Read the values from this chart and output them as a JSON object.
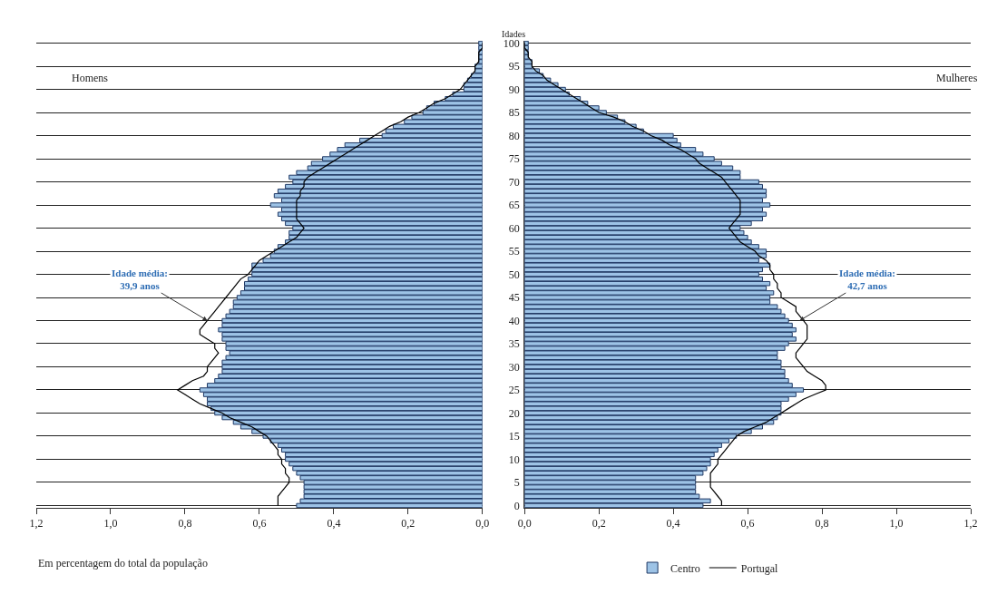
{
  "chart_data": [
    {
      "type": "bar",
      "orientation": "horizontal",
      "title": "Homens",
      "categories": [
        "100",
        null,
        null,
        null,
        null,
        "95",
        null,
        null,
        null,
        null,
        "90",
        null,
        null,
        null,
        null,
        "85",
        null,
        null,
        null,
        null,
        "80",
        null,
        null,
        null,
        null,
        "75",
        null,
        null,
        null,
        null,
        "70",
        null,
        null,
        null,
        null,
        "65",
        null,
        null,
        null,
        null,
        "60",
        null,
        null,
        null,
        null,
        "55",
        null,
        null,
        null,
        null,
        "50",
        null,
        null,
        null,
        null,
        "45",
        null,
        null,
        null,
        null,
        "40",
        null,
        null,
        null,
        null,
        "35",
        null,
        null,
        null,
        null,
        "30",
        null,
        null,
        null,
        null,
        "25",
        null,
        null,
        null,
        null,
        "20",
        null,
        null,
        null,
        null,
        "15",
        null,
        null,
        null,
        null,
        "10",
        null,
        null,
        null,
        null,
        "5",
        null,
        null,
        null,
        null,
        "0"
      ],
      "series": [
        {
          "color": "#9dc3e6",
          "values": [
            0.01,
            0.01,
            0.01,
            0.01,
            0.01,
            0.02,
            0.02,
            0.03,
            0.04,
            0.05,
            0.05,
            0.08,
            0.1,
            0.13,
            0.15,
            0.16,
            0.19,
            0.21,
            0.24,
            0.26,
            0.27,
            0.33,
            0.37,
            0.39,
            0.41,
            0.43,
            0.46,
            0.47,
            0.5,
            0.52,
            0.51,
            0.53,
            0.55,
            0.56,
            0.54,
            0.57,
            0.54,
            0.55,
            0.54,
            0.53,
            0.51,
            0.52,
            0.52,
            0.53,
            0.55,
            0.56,
            0.57,
            0.59,
            0.62,
            0.62,
            0.62,
            0.63,
            0.64,
            0.64,
            0.65,
            0.66,
            0.67,
            0.67,
            0.68,
            0.69,
            0.7,
            0.7,
            0.71,
            0.7,
            0.7,
            0.69,
            0.69,
            0.68,
            0.69,
            0.7,
            0.7,
            0.7,
            0.71,
            0.72,
            0.74,
            0.76,
            0.75,
            0.74,
            0.74,
            0.73,
            0.72,
            0.7,
            0.67,
            0.65,
            0.62,
            0.59,
            0.57,
            0.55,
            0.54,
            0.53,
            0.53,
            0.52,
            0.51,
            0.5,
            0.49,
            0.48,
            0.48,
            0.48,
            0.48,
            0.49,
            0.5
          ]
        },
        {
          "type": "line",
          "color": "#000000",
          "values": [
            0.0,
            0.0,
            0.01,
            0.01,
            0.01,
            0.02,
            0.02,
            0.03,
            0.04,
            0.05,
            0.06,
            0.08,
            0.1,
            0.13,
            0.15,
            0.17,
            0.2,
            0.22,
            0.25,
            0.27,
            0.29,
            0.31,
            0.33,
            0.35,
            0.37,
            0.39,
            0.41,
            0.43,
            0.45,
            0.47,
            0.48,
            0.48,
            0.49,
            0.49,
            0.5,
            0.5,
            0.5,
            0.5,
            0.5,
            0.49,
            0.48,
            0.49,
            0.5,
            0.52,
            0.54,
            0.56,
            0.58,
            0.6,
            0.61,
            0.62,
            0.63,
            0.65,
            0.66,
            0.67,
            0.68,
            0.69,
            0.7,
            0.71,
            0.72,
            0.73,
            0.74,
            0.75,
            0.76,
            0.76,
            0.74,
            0.72,
            0.72,
            0.71,
            0.72,
            0.73,
            0.74,
            0.74,
            0.75,
            0.78,
            0.8,
            0.82,
            0.8,
            0.78,
            0.76,
            0.73,
            0.7,
            0.68,
            0.65,
            0.62,
            0.6,
            0.58,
            0.57,
            0.56,
            0.55,
            0.55,
            0.54,
            0.54,
            0.53,
            0.53,
            0.52,
            0.52,
            0.53,
            0.54,
            0.55,
            0.55,
            0.55
          ]
        }
      ],
      "xlim": [
        1.2,
        0
      ],
      "xticks": [
        {
          "value": 1.2,
          "label": "1,2"
        },
        {
          "value": 1.0,
          "label": "1,0"
        },
        {
          "value": 0.8,
          "label": "0,8"
        },
        {
          "value": 0.6,
          "label": "0,6"
        },
        {
          "value": 0.4,
          "label": "0,4"
        },
        {
          "value": 0.2,
          "label": "0,2"
        },
        {
          "value": 0,
          "label": "0,0"
        }
      ],
      "grid": "y",
      "tick_labels": "x",
      "annotations": [
        {
          "text": "Idade média:\n39,9 anos",
          "x": 0.74,
          "y": "40"
        },
        "Em percentagem do total da população"
      ]
    },
    {
      "type": "bar",
      "orientation": "horizontal",
      "title": "Mulheres",
      "ylabel": "Idades",
      "categories": [
        "100",
        null,
        null,
        null,
        null,
        "95",
        null,
        null,
        null,
        null,
        "90",
        null,
        null,
        null,
        null,
        "85",
        null,
        null,
        null,
        null,
        "80",
        null,
        null,
        null,
        null,
        "75",
        null,
        null,
        null,
        null,
        "70",
        null,
        null,
        null,
        null,
        "65",
        null,
        null,
        null,
        null,
        "60",
        null,
        null,
        null,
        null,
        "55",
        null,
        null,
        null,
        null,
        "50",
        null,
        null,
        null,
        null,
        "45",
        null,
        null,
        null,
        null,
        "40",
        null,
        null,
        null,
        null,
        "35",
        null,
        null,
        null,
        null,
        "30",
        null,
        null,
        null,
        null,
        "25",
        null,
        null,
        null,
        null,
        "20",
        null,
        null,
        null,
        null,
        "15",
        null,
        null,
        null,
        null,
        "10",
        null,
        null,
        null,
        null,
        "5",
        null,
        null,
        null,
        null,
        "0"
      ],
      "series": [
        {
          "name": "Centro",
          "color": "#9dc3e6",
          "values": [
            0.01,
            0.01,
            0.01,
            0.01,
            0.02,
            0.02,
            0.04,
            0.05,
            0.07,
            0.09,
            0.11,
            0.12,
            0.15,
            0.17,
            0.2,
            0.22,
            0.25,
            0.27,
            0.3,
            0.32,
            0.4,
            0.41,
            0.42,
            0.46,
            0.48,
            0.51,
            0.53,
            0.56,
            0.58,
            0.58,
            0.63,
            0.64,
            0.65,
            0.65,
            0.64,
            0.66,
            0.64,
            0.65,
            0.64,
            0.61,
            0.58,
            0.59,
            0.6,
            0.61,
            0.63,
            0.65,
            0.65,
            0.63,
            0.66,
            0.64,
            0.63,
            0.64,
            0.66,
            0.65,
            0.67,
            0.66,
            0.66,
            0.68,
            0.69,
            0.7,
            0.71,
            0.72,
            0.73,
            0.72,
            0.73,
            0.71,
            0.7,
            0.68,
            0.68,
            0.69,
            0.69,
            0.7,
            0.7,
            0.71,
            0.72,
            0.75,
            0.73,
            0.71,
            0.69,
            0.69,
            0.69,
            0.68,
            0.67,
            0.64,
            0.61,
            0.57,
            0.55,
            0.53,
            0.52,
            0.51,
            0.5,
            0.5,
            0.49,
            0.48,
            0.46,
            0.46,
            0.46,
            0.46,
            0.47,
            0.5,
            0.48
          ]
        },
        {
          "name": "Portugal",
          "type": "line",
          "color": "#000000",
          "values": [
            0.0,
            0.0,
            0.01,
            0.01,
            0.02,
            0.02,
            0.03,
            0.05,
            0.06,
            0.08,
            0.1,
            0.12,
            0.14,
            0.16,
            0.18,
            0.2,
            0.24,
            0.27,
            0.29,
            0.32,
            0.34,
            0.37,
            0.39,
            0.42,
            0.44,
            0.46,
            0.47,
            0.49,
            0.51,
            0.53,
            0.54,
            0.55,
            0.56,
            0.57,
            0.58,
            0.58,
            0.58,
            0.58,
            0.57,
            0.56,
            0.55,
            0.56,
            0.57,
            0.58,
            0.6,
            0.62,
            0.63,
            0.65,
            0.66,
            0.66,
            0.67,
            0.67,
            0.68,
            0.68,
            0.69,
            0.69,
            0.71,
            0.73,
            0.73,
            0.74,
            0.75,
            0.76,
            0.76,
            0.76,
            0.76,
            0.75,
            0.74,
            0.73,
            0.73,
            0.74,
            0.75,
            0.76,
            0.78,
            0.8,
            0.81,
            0.81,
            0.78,
            0.75,
            0.73,
            0.71,
            0.69,
            0.67,
            0.65,
            0.62,
            0.59,
            0.57,
            0.56,
            0.55,
            0.54,
            0.53,
            0.52,
            0.52,
            0.51,
            0.5,
            0.5,
            0.5,
            0.5,
            0.51,
            0.52,
            0.53,
            0.53
          ]
        }
      ],
      "xlim": [
        0,
        1.2
      ],
      "xticks": [
        {
          "value": 0,
          "label": "0,0"
        },
        {
          "value": 0.2,
          "label": "0,2"
        },
        {
          "value": 0.4,
          "label": "0,4"
        },
        {
          "value": 0.6,
          "label": "0,6"
        },
        {
          "value": 0.8,
          "label": "0,8"
        },
        {
          "value": 1.0,
          "label": "1,0"
        },
        {
          "value": 1.2,
          "label": "1,2"
        }
      ],
      "grid": "y",
      "legend": "bottom",
      "annotations": [
        {
          "text": "Idade média:\n42,7 anos",
          "x": 0.74,
          "y": "40"
        }
      ]
    }
  ]
}
